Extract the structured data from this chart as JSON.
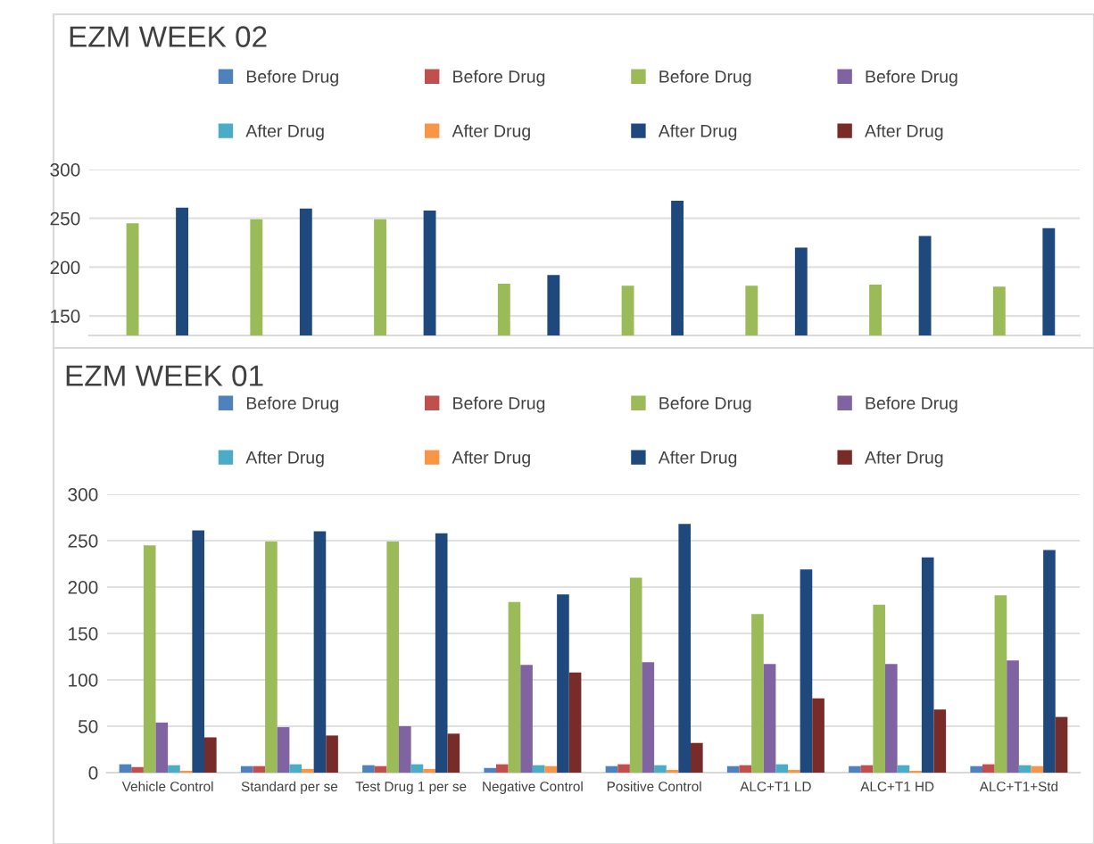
{
  "chart_data": [
    {
      "type": "bar",
      "title": "EZM WEEK 02",
      "categories": [
        null,
        null,
        null,
        null,
        null,
        null,
        null,
        null
      ],
      "ylim": [
        130,
        300
      ],
      "yticks": [
        150,
        200,
        250,
        300
      ],
      "grid": "y",
      "legend": "top",
      "tick_labels": "y",
      "series": [
        {
          "name": "Before Drug",
          "color": "#4f81bd",
          "values": [
            null,
            null,
            null,
            null,
            null,
            null,
            null,
            null
          ]
        },
        {
          "name": "Before Drug",
          "color": "#c0504d",
          "values": [
            null,
            null,
            null,
            null,
            null,
            null,
            null,
            null
          ]
        },
        {
          "name": "Before Drug",
          "color": "#9bbb59",
          "values": [
            245,
            249,
            249,
            183,
            181,
            181,
            182,
            180
          ]
        },
        {
          "name": "Before Drug",
          "color": "#8064a2",
          "values": [
            null,
            null,
            null,
            null,
            null,
            null,
            null,
            null
          ]
        },
        {
          "name": "After Drug",
          "color": "#4bacc6",
          "values": [
            null,
            null,
            null,
            null,
            null,
            null,
            null,
            null
          ]
        },
        {
          "name": "After Drug",
          "color": "#f79646",
          "values": [
            null,
            null,
            null,
            null,
            null,
            null,
            null,
            null
          ]
        },
        {
          "name": "After Drug",
          "color": "#1f497d",
          "values": [
            261,
            260,
            258,
            192,
            268,
            220,
            232,
            240
          ]
        },
        {
          "name": "After Drug",
          "color": "#772c2a",
          "values": [
            null,
            null,
            null,
            null,
            null,
            null,
            null,
            null
          ]
        }
      ]
    },
    {
      "type": "bar",
      "title": "EZM WEEK 01",
      "categories": [
        "Vehicle Control",
        "Standard per se",
        "Test Drug 1 per se",
        "Negative Control",
        "Positive Control",
        "ALC+T1 LD",
        "ALC+T1 HD",
        "ALC+T1+Std"
      ],
      "ylim": [
        0,
        300
      ],
      "yticks": [
        0,
        50,
        100,
        150,
        200,
        250,
        300
      ],
      "grid": "y",
      "legend": "top",
      "series": [
        {
          "name": "Before Drug",
          "color": "#4f81bd",
          "values": [
            9,
            7,
            8,
            5,
            7,
            7,
            7,
            7
          ]
        },
        {
          "name": "Before Drug",
          "color": "#c0504d",
          "values": [
            6,
            7,
            7,
            9,
            9,
            8,
            8,
            9
          ]
        },
        {
          "name": "Before Drug",
          "color": "#9bbb59",
          "values": [
            245,
            249,
            249,
            184,
            210,
            171,
            181,
            191
          ]
        },
        {
          "name": "Before Drug",
          "color": "#8064a2",
          "values": [
            54,
            49,
            50,
            116,
            119,
            117,
            117,
            121
          ]
        },
        {
          "name": "After Drug",
          "color": "#4bacc6",
          "values": [
            8,
            9,
            9,
            8,
            8,
            9,
            8,
            8
          ]
        },
        {
          "name": "After Drug",
          "color": "#f79646",
          "values": [
            2,
            4,
            4,
            7,
            3,
            3,
            2,
            7
          ]
        },
        {
          "name": "After Drug",
          "color": "#1f497d",
          "values": [
            261,
            260,
            258,
            192,
            268,
            219,
            232,
            240
          ]
        },
        {
          "name": "After Drug",
          "color": "#772c2a",
          "values": [
            38,
            40,
            42,
            108,
            32,
            80,
            68,
            60
          ]
        }
      ]
    }
  ]
}
